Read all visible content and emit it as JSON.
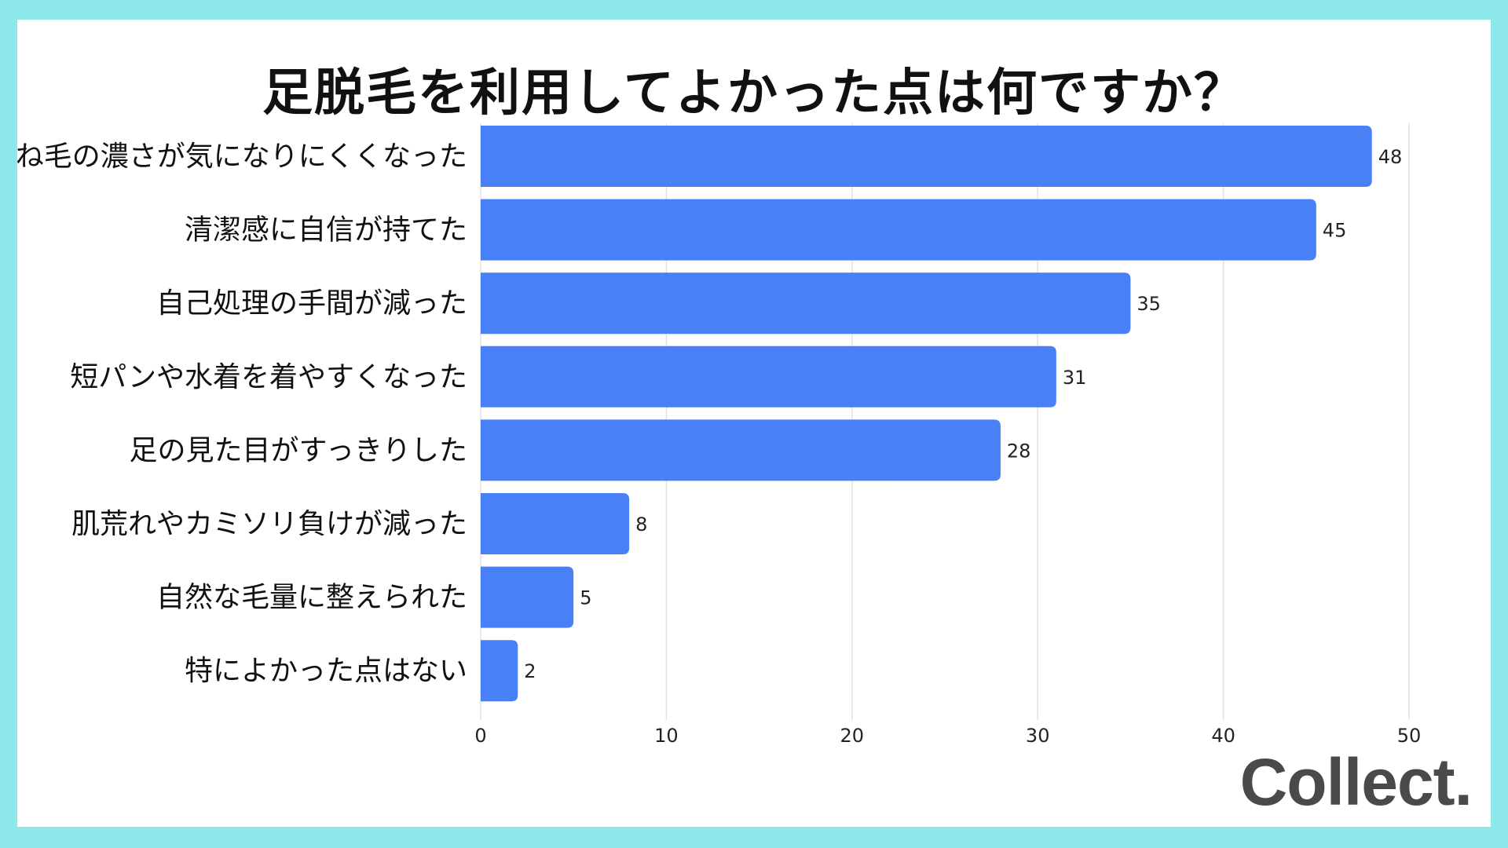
{
  "title": "足脱毛を利用してよかった点は何ですか？",
  "brand": "Collect.",
  "colors": {
    "bar": "#4a80f5",
    "background": "#8ee8ea",
    "grid": "#e2e2e2"
  },
  "chart_data": {
    "type": "bar",
    "orientation": "horizontal",
    "categories": [
      "すね毛の濃さが気になりにくくなった",
      "清潔感に自信が持てた",
      "自己処理の手間が減った",
      "短パンや水着を着やすくなった",
      "足の見た目がすっきりした",
      "肌荒れやカミソリ負けが減った",
      "自然な毛量に整えられた",
      "特によかった点はない"
    ],
    "values": [
      48,
      45,
      35,
      31,
      28,
      8,
      5,
      2
    ],
    "xlim": [
      0,
      50
    ],
    "xticks": [
      0,
      10,
      20,
      30,
      40,
      50
    ],
    "grid": true,
    "data_labels": true
  }
}
